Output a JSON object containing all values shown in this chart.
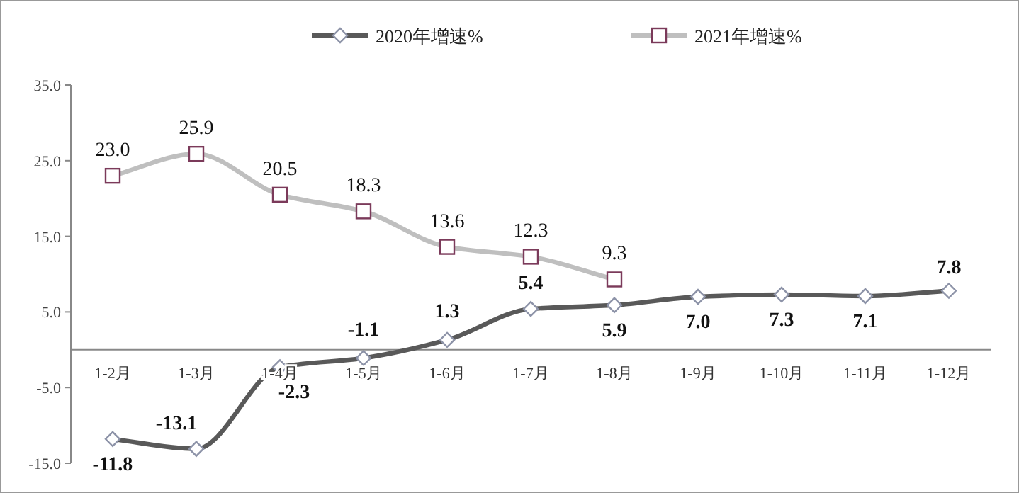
{
  "chart_data": {
    "type": "line",
    "categories": [
      "1-2月",
      "1-3月",
      "1-4月",
      "1-5月",
      "1-6月",
      "1-7月",
      "1-8月",
      "1-9月",
      "1-10月",
      "1-11月",
      "1-12月"
    ],
    "series": [
      {
        "name": "2020年增速%",
        "color": "#595959",
        "marker": "diamond",
        "values": [
          -11.8,
          -13.1,
          -2.3,
          -1.1,
          1.3,
          5.4,
          5.9,
          7.0,
          7.3,
          7.1,
          7.8
        ],
        "value_labels": [
          "-11.8",
          "-13.1",
          "-2.3",
          "-1.1",
          "1.3",
          "5.4",
          "5.9",
          "7.0",
          "7.3",
          "7.1",
          "7.8"
        ]
      },
      {
        "name": "2021年增速%",
        "color": "#bfbfbf",
        "marker": "square",
        "values": [
          23.0,
          25.9,
          20.5,
          18.3,
          13.6,
          12.3,
          9.3,
          null,
          null,
          null,
          null
        ],
        "value_labels": [
          "23.0",
          "25.9",
          "20.5",
          "18.3",
          "13.6",
          "12.3",
          "9.3",
          null,
          null,
          null,
          null
        ]
      }
    ],
    "ylim": [
      -15,
      35
    ],
    "yticks": [
      {
        "value": -15,
        "label": "-15.0"
      },
      {
        "value": -5,
        "label": "-5.0"
      },
      {
        "value": 5,
        "label": "5.0"
      },
      {
        "value": 15,
        "label": "15.0"
      },
      {
        "value": 25,
        "label": "25.0"
      },
      {
        "value": 35,
        "label": "35.0"
      }
    ],
    "grid": false,
    "legend": "top"
  }
}
